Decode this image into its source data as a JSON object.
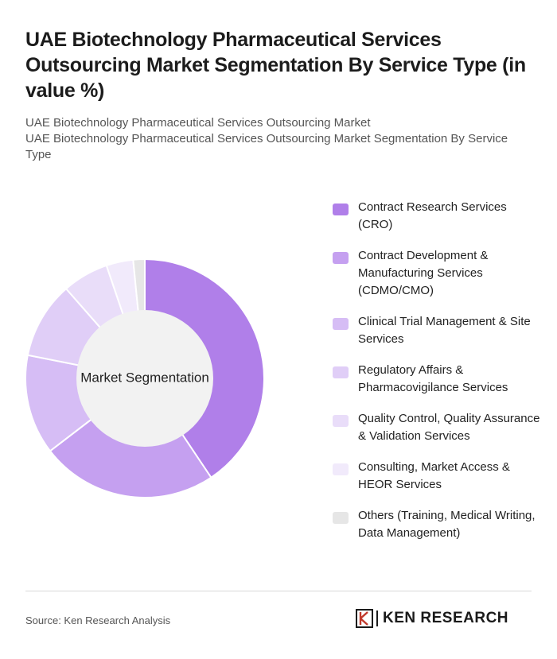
{
  "title": "UAE Biotechnology Pharmaceutical Services Outsourcing Market Segmentation By Service Type (in value %)",
  "subtitle_line1": "UAE Biotechnology Pharmaceutical Services Outsourcing Market",
  "subtitle_line2": "UAE Biotechnology Pharmaceutical Services Outsourcing Market Segmentation By Service Type",
  "source": "Source: Ken Research Analysis",
  "brand": "KEN RESEARCH",
  "chart_data": {
    "type": "pie",
    "center_label": "Market Segmentation",
    "categories": [
      "Contract Research Services (CRO)",
      "Contract Development & Manufacturing Services (CDMO/CMO)",
      "Clinical Trial Management & Site Services",
      "Regulatory Affairs & Pharmacovigilance Services",
      "Quality Control, Quality Assurance & Validation Services",
      "Consulting, Market Access & HEOR Services",
      "Others (Training, Medical Writing, Data Management)"
    ],
    "values": [
      39,
      23,
      13,
      10,
      6,
      3.5,
      1.5
    ],
    "colors": [
      "#b07fe9",
      "#c5a0f0",
      "#d6bdf5",
      "#e0cef7",
      "#e9ddf9",
      "#f1eafb",
      "#e6e6e6"
    ],
    "legend_position": "right"
  }
}
